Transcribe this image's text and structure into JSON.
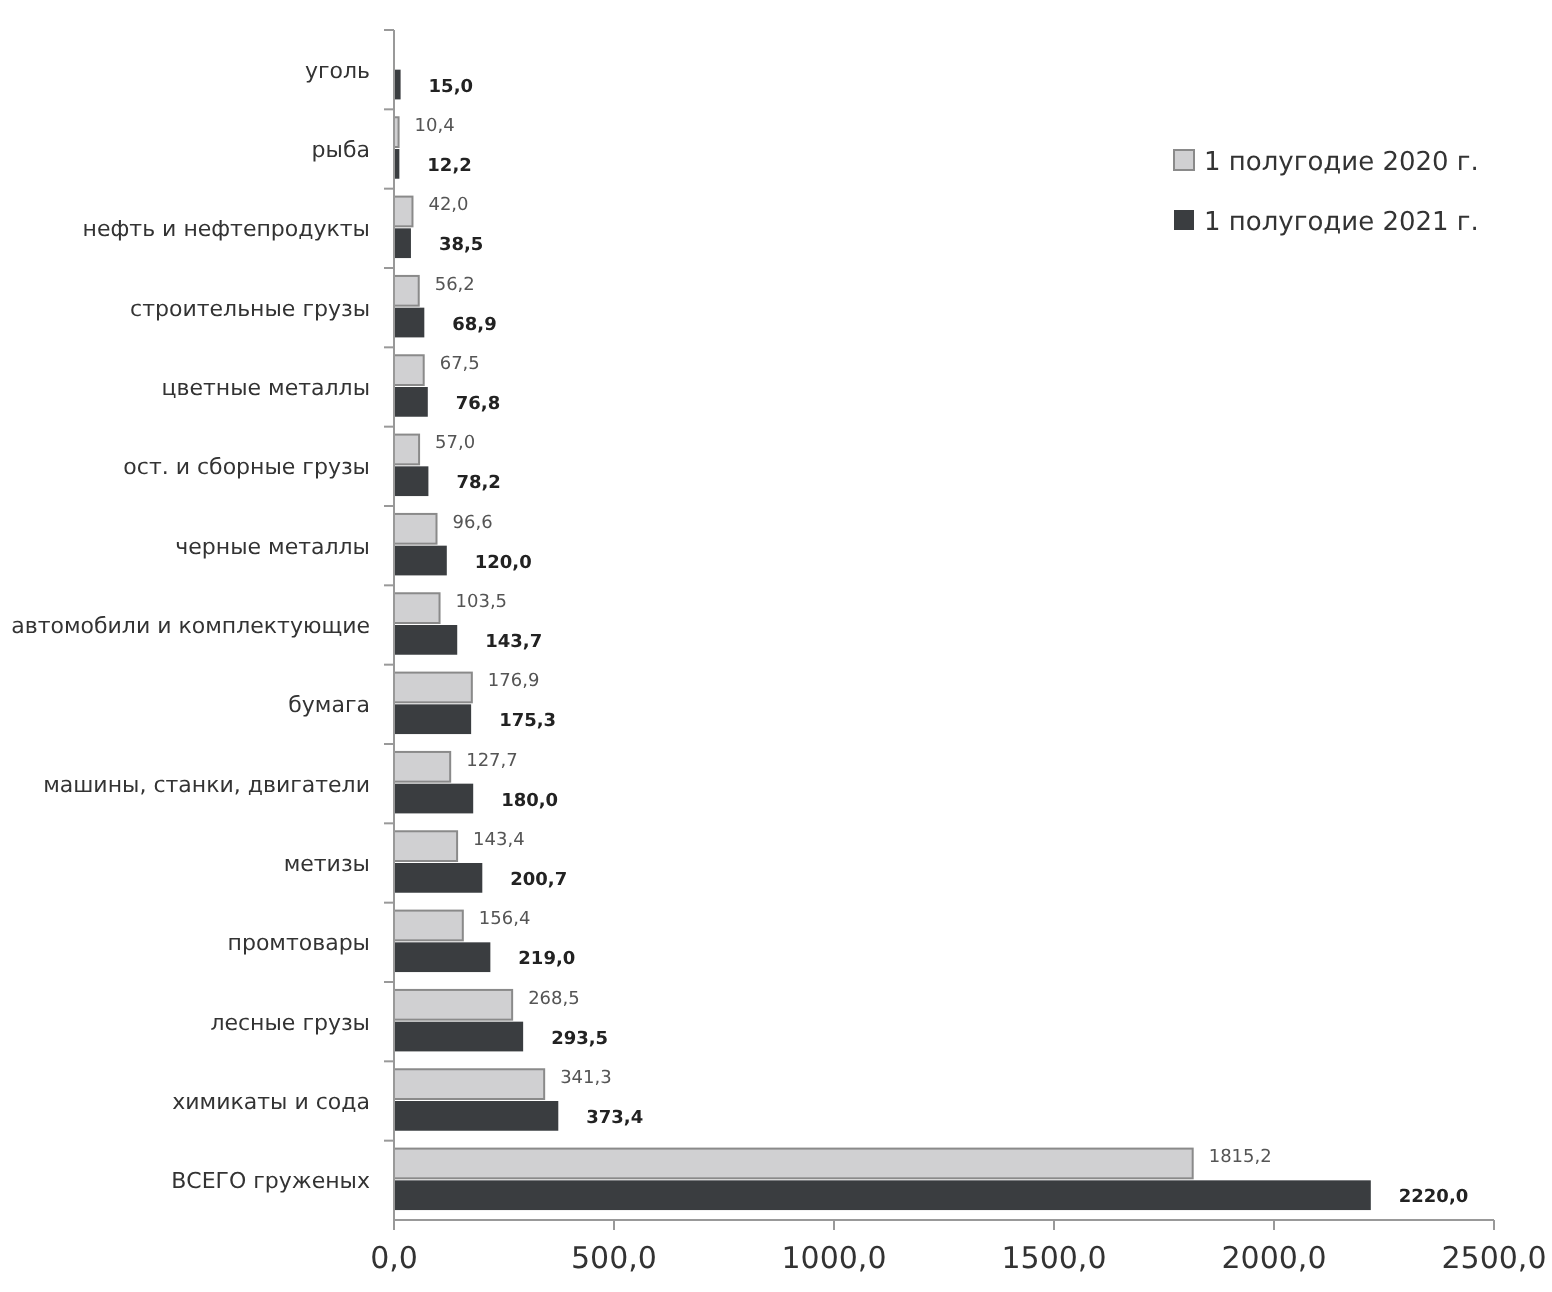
{
  "chart_data": {
    "type": "bar",
    "orientation": "horizontal",
    "categories": [
      "уголь",
      "рыба",
      "нефть и нефтепродукты",
      "строительные грузы",
      "цветные металлы",
      "ост. и сборные грузы",
      "черные металлы",
      "автомобили и комплектующие",
      "бумага",
      "машины, станки, двигатели",
      "метизы",
      "промтовары",
      "лесные грузы",
      "химикаты и сода",
      "ВСЕГО груженых"
    ],
    "series": [
      {
        "name": "1 полугодие 2020 г.",
        "color": "#d0d0d2",
        "values": [
          null,
          10.4,
          42.0,
          56.2,
          67.5,
          57.0,
          96.6,
          103.5,
          176.9,
          127.7,
          143.4,
          156.4,
          268.5,
          341.3,
          1815.2
        ],
        "value_labels": [
          null,
          "10,4",
          "42,0",
          "56,2",
          "67,5",
          "57,0",
          "96,6",
          "103,5",
          "176,9",
          "127,7",
          "143,4",
          "156,4",
          "268,5",
          "341,3",
          "1815,2"
        ]
      },
      {
        "name": "1 полугодие 2021 г.",
        "color": "#3a3d40",
        "values": [
          15.0,
          12.2,
          38.5,
          68.9,
          76.8,
          78.2,
          120.0,
          143.7,
          175.3,
          180.0,
          200.7,
          219.0,
          293.5,
          373.4,
          2220.0
        ],
        "value_labels": [
          "15,0",
          "12,2",
          "38,5",
          "68,9",
          "76,8",
          "78,2",
          "120,0",
          "143,7",
          "175,3",
          "180,0",
          "200,7",
          "219,0",
          "293,5",
          "373,4",
          "2220,0"
        ]
      }
    ],
    "xlim": [
      0,
      2500
    ],
    "xticks": [
      {
        "value": 0,
        "label": "0,0"
      },
      {
        "value": 500,
        "label": "500,0"
      },
      {
        "value": 1000,
        "label": "1000,0"
      },
      {
        "value": 1500,
        "label": "1500,0"
      },
      {
        "value": 2000,
        "label": "2000,0"
      },
      {
        "value": 2500,
        "label": "2500,0"
      }
    ],
    "legend": "top right"
  }
}
